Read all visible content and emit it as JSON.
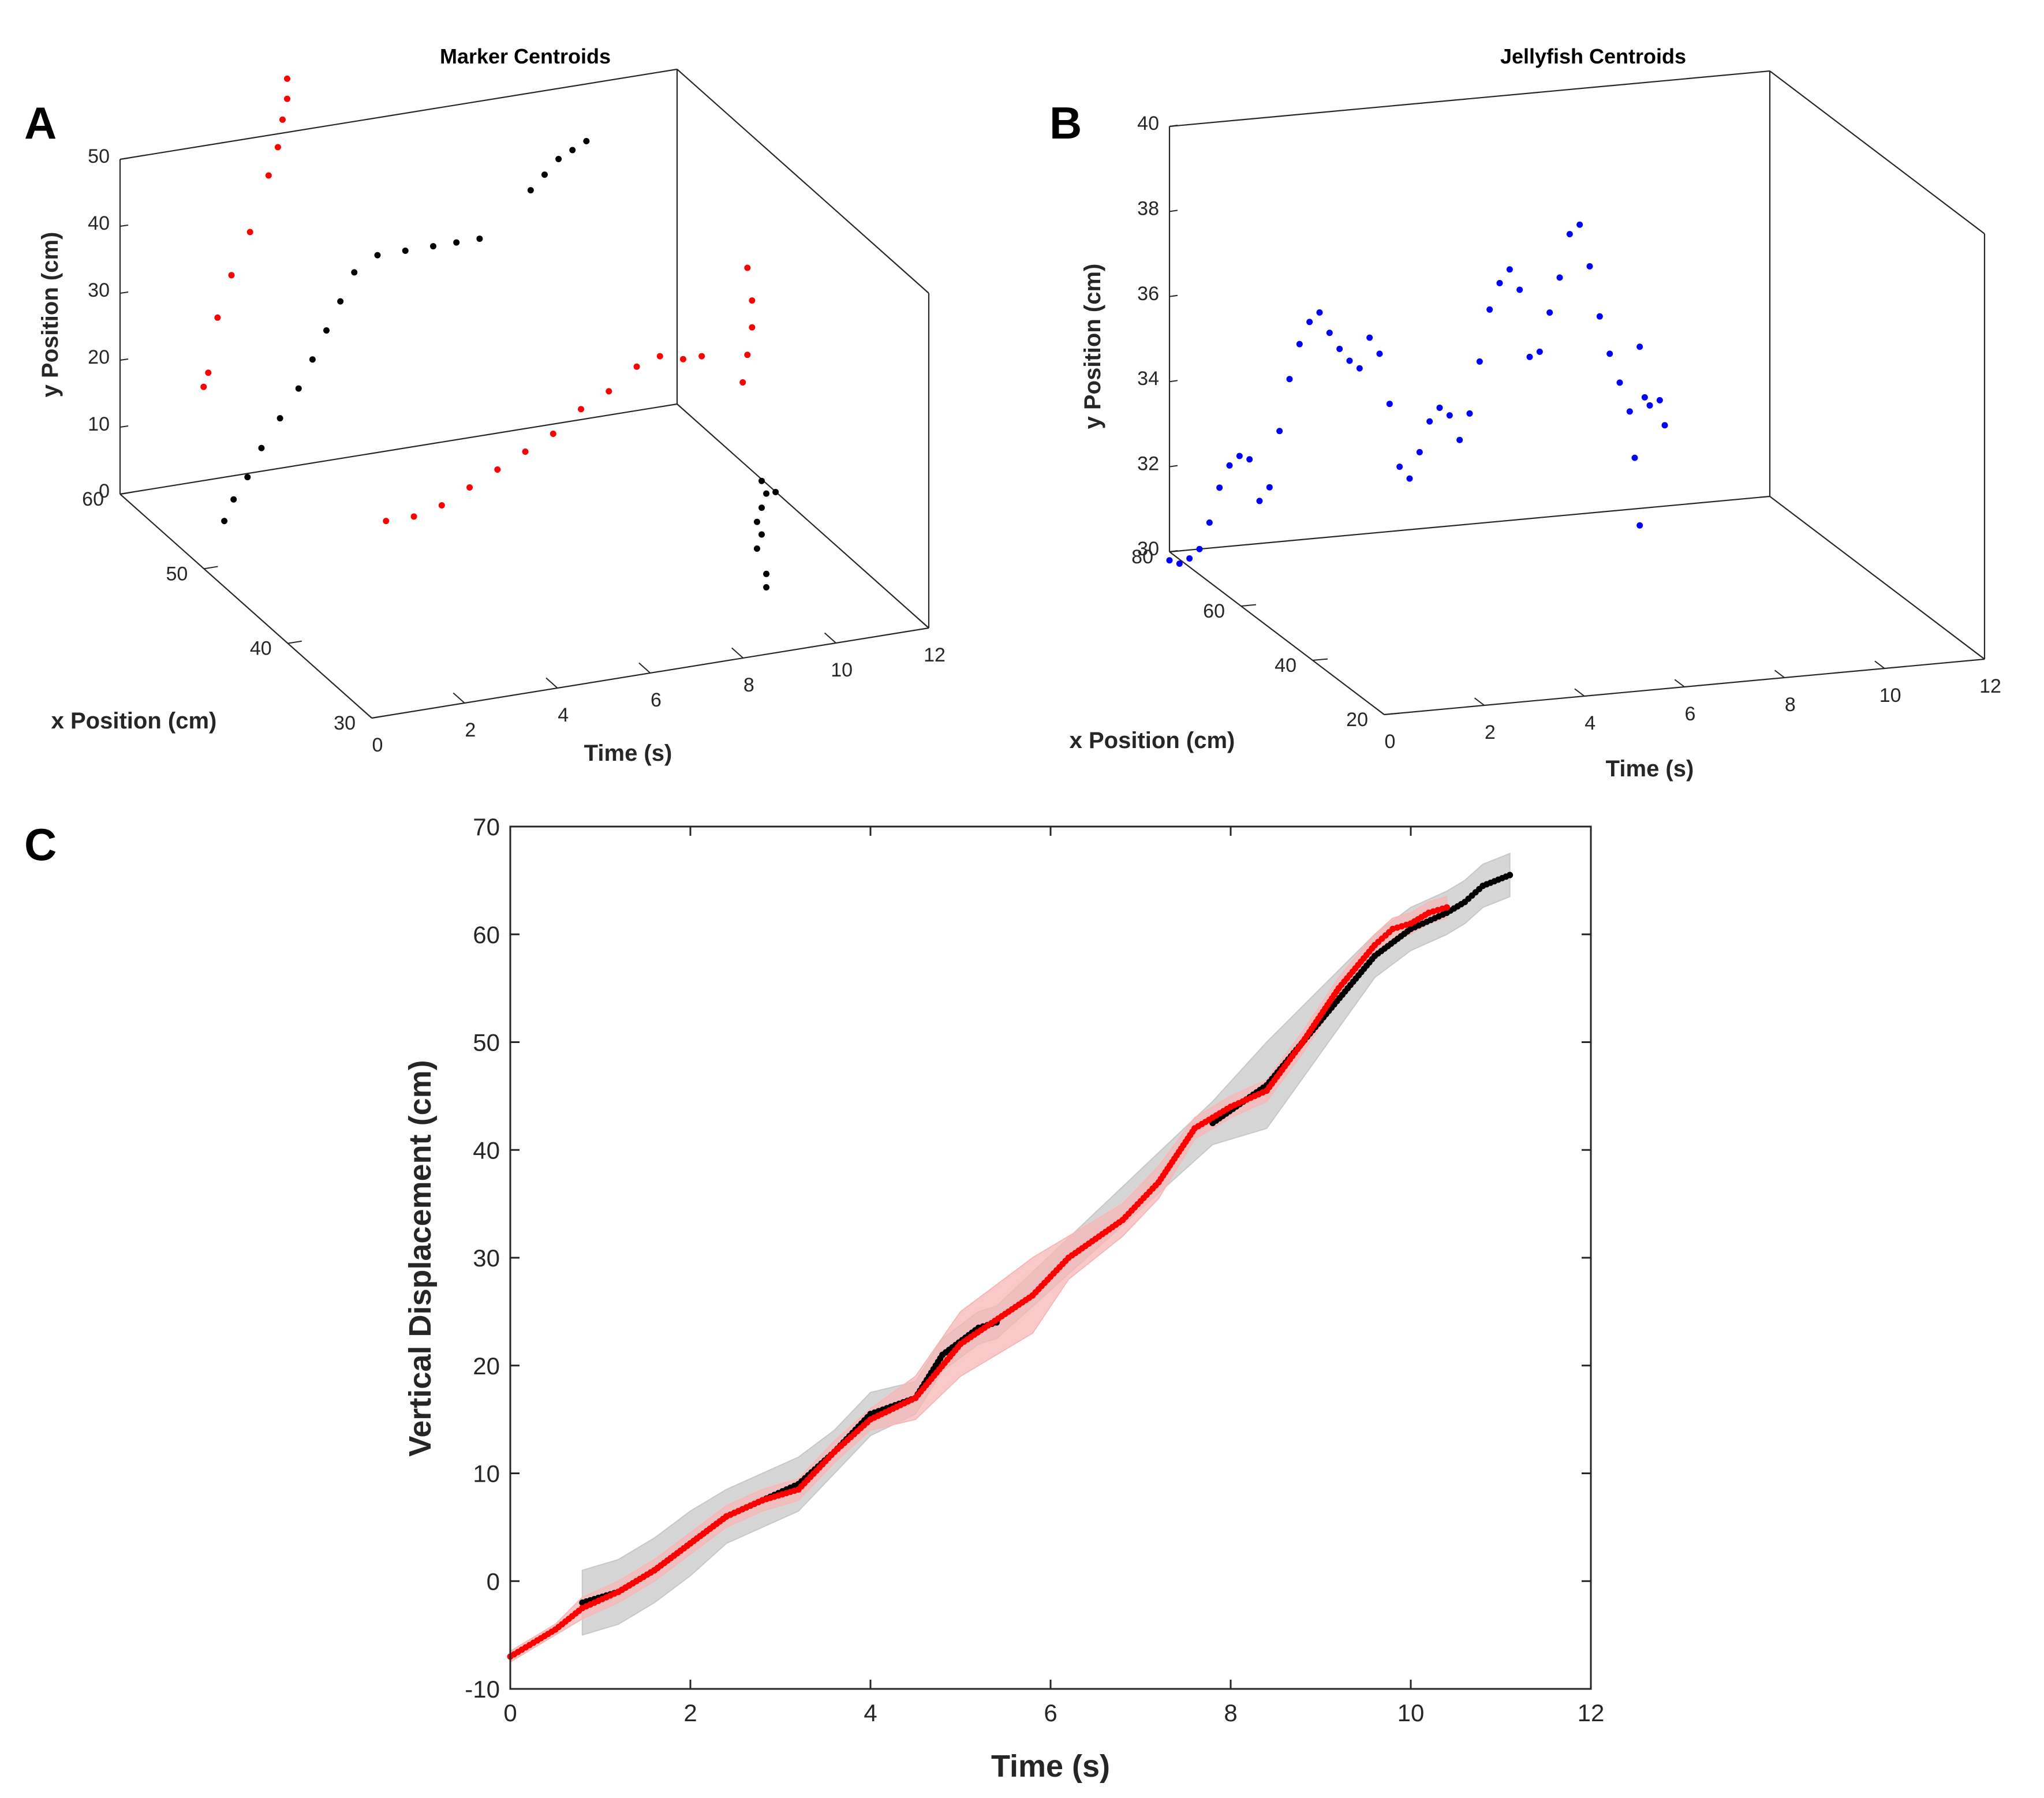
{
  "panels": {
    "A": "A",
    "B": "B",
    "C": "C"
  },
  "colors": {
    "red": "#ff0000",
    "black": "#000000",
    "blue": "#0000ff",
    "band_gray": "#c8c8c8",
    "band_pink": "#f7b7b7",
    "axis": "#262626"
  },
  "chart_data": [
    {
      "type": "scatter",
      "panel": "A",
      "title": "Marker Centroids",
      "xlabel": "Time (s)",
      "ylabel": "x Position (cm)",
      "zlabel": "y Position (cm)",
      "xlim": [
        0,
        12
      ],
      "ylim": [
        30,
        60
      ],
      "zlim": [
        0,
        50
      ],
      "x_ticks": [
        "0",
        "2",
        "4",
        "6",
        "8",
        "10",
        "12"
      ],
      "y_ticks": [
        "30",
        "40",
        "50",
        "60"
      ],
      "z_ticks": [
        "0",
        "10",
        "20",
        "30",
        "40",
        "50"
      ],
      "series": [
        {
          "color": "#ff0000",
          "points": [
            [
              1.8,
              60,
              14
            ],
            [
              1.9,
              60,
              16
            ],
            [
              2.1,
              60,
              24
            ],
            [
              2.4,
              60,
              30
            ],
            [
              2.8,
              60,
              36
            ],
            [
              3.2,
              60,
              44
            ],
            [
              3.4,
              60,
              48
            ],
            [
              3.5,
              60,
              52
            ],
            [
              3.6,
              60,
              55
            ],
            [
              3.6,
              60,
              58
            ],
            [
              3.2,
              46,
              8
            ],
            [
              3.8,
              46,
              8
            ],
            [
              4.4,
              46,
              9
            ],
            [
              5.0,
              46,
              11
            ],
            [
              5.6,
              46,
              13
            ],
            [
              6.2,
              46,
              15
            ],
            [
              6.8,
              46,
              17
            ],
            [
              7.4,
              46,
              20
            ],
            [
              8.0,
              46,
              22
            ],
            [
              8.6,
              46,
              25
            ],
            [
              9.1,
              46,
              26
            ],
            [
              9.6,
              46,
              25
            ],
            [
              10.0,
              46,
              25
            ],
            [
              9.8,
              40,
              28
            ],
            [
              9.9,
              40,
              32
            ],
            [
              10.0,
              40,
              36
            ],
            [
              10.0,
              40,
              40
            ],
            [
              9.9,
              40,
              45
            ]
          ]
        },
        {
          "color": "#000000",
          "points": [
            [
              0.8,
              52,
              4
            ],
            [
              1.0,
              52,
              7
            ],
            [
              1.3,
              52,
              10
            ],
            [
              1.6,
              52,
              14
            ],
            [
              2.0,
              52,
              18
            ],
            [
              2.4,
              52,
              22
            ],
            [
              2.7,
              52,
              26
            ],
            [
              3.0,
              52,
              30
            ],
            [
              3.3,
              52,
              34
            ],
            [
              3.6,
              52,
              38
            ],
            [
              4.1,
              52,
              40
            ],
            [
              4.7,
              52,
              40
            ],
            [
              5.3,
              52,
              40
            ],
            [
              5.8,
              52,
              40
            ],
            [
              6.3,
              52,
              40
            ],
            [
              7.4,
              52,
              46
            ],
            [
              7.7,
              52,
              48
            ],
            [
              8.0,
              52,
              50
            ],
            [
              8.3,
              52,
              51
            ],
            [
              8.6,
              52,
              52
            ],
            [
              8.3,
              30,
              16
            ],
            [
              8.4,
              30,
              18
            ],
            [
              8.3,
              30,
              20
            ],
            [
              8.4,
              30,
              22
            ],
            [
              8.5,
              30,
              24
            ],
            [
              8.4,
              30,
              26
            ],
            [
              8.7,
              30,
              24
            ],
            [
              8.5,
              30,
              12
            ],
            [
              8.5,
              30,
              10
            ]
          ]
        }
      ]
    },
    {
      "type": "scatter",
      "panel": "B",
      "title": "Jellyfish Centroids",
      "xlabel": "Time (s)",
      "ylabel": "x Position (cm)",
      "zlabel": "y Position (cm)",
      "xlim": [
        0,
        12
      ],
      "ylim": [
        20,
        80
      ],
      "zlim": [
        30,
        40
      ],
      "x_ticks": [
        "0",
        "2",
        "4",
        "6",
        "8",
        "10",
        "12"
      ],
      "y_ticks": [
        "20",
        "40",
        "60",
        "80"
      ],
      "z_ticks": [
        "30",
        "32",
        "34",
        "36",
        "38",
        "40"
      ],
      "series": [
        {
          "color": "#0000ff",
          "points": [
            [
              0.0,
              29.8
            ],
            [
              0.2,
              29.7
            ],
            [
              0.4,
              29.8
            ],
            [
              0.6,
              30.0
            ],
            [
              0.8,
              30.6
            ],
            [
              1.0,
              31.4
            ],
            [
              1.2,
              31.9
            ],
            [
              1.4,
              32.1
            ],
            [
              1.6,
              32.0
            ],
            [
              1.8,
              31.0
            ],
            [
              2.0,
              31.3
            ],
            [
              2.2,
              32.6
            ],
            [
              2.4,
              33.8
            ],
            [
              2.6,
              34.6
            ],
            [
              2.8,
              35.1
            ],
            [
              3.0,
              35.3
            ],
            [
              3.2,
              34.8
            ],
            [
              3.4,
              34.4
            ],
            [
              3.6,
              34.1
            ],
            [
              3.8,
              33.9
            ],
            [
              4.0,
              34.6
            ],
            [
              4.2,
              34.2
            ],
            [
              4.4,
              33.0
            ],
            [
              4.6,
              31.5
            ],
            [
              4.8,
              31.2
            ],
            [
              5.0,
              31.8
            ],
            [
              5.2,
              32.5
            ],
            [
              5.4,
              32.8
            ],
            [
              5.6,
              32.6
            ],
            [
              5.8,
              32.0
            ],
            [
              6.0,
              32.6
            ],
            [
              6.2,
              33.8
            ],
            [
              6.4,
              35.0
            ],
            [
              6.6,
              35.6
            ],
            [
              6.8,
              35.9
            ],
            [
              7.0,
              35.4
            ],
            [
              7.2,
              33.8
            ],
            [
              7.4,
              33.9
            ],
            [
              7.6,
              34.8
            ],
            [
              7.8,
              35.6
            ],
            [
              8.0,
              36.6
            ],
            [
              8.2,
              36.8
            ],
            [
              8.4,
              35.8
            ],
            [
              8.6,
              34.6
            ],
            [
              8.8,
              33.7
            ],
            [
              9.0,
              33.0
            ],
            [
              9.2,
              32.3
            ],
            [
              9.3,
              31.2
            ],
            [
              9.4,
              29.6
            ],
            [
              9.4,
              33.8
            ],
            [
              9.5,
              32.6
            ],
            [
              9.6,
              32.4
            ],
            [
              9.8,
              32.5
            ],
            [
              9.9,
              31.9
            ]
          ]
        }
      ]
    },
    {
      "type": "line",
      "panel": "C",
      "xlabel": "Time (s)",
      "ylabel": "Vertical Displacement (cm)",
      "xlim": [
        0,
        12
      ],
      "ylim": [
        -10,
        70
      ],
      "x_ticks": [
        "0",
        "2",
        "4",
        "6",
        "8",
        "10",
        "12"
      ],
      "y_ticks": [
        "-10",
        "0",
        "10",
        "20",
        "30",
        "40",
        "50",
        "60",
        "70"
      ],
      "series": [
        {
          "color": "#000000",
          "band_color": "#c8c8c8",
          "x": [
            0.8,
            1.2,
            1.6,
            2.0,
            2.4,
            2.8,
            3.2,
            3.6,
            4.0,
            4.5,
            4.8,
            5.2,
            5.4,
            7.8,
            8.4,
            9.0,
            9.6,
            10.0,
            10.4,
            10.6,
            10.8,
            11.1
          ],
          "y": [
            -2.0,
            -1.0,
            1.0,
            3.5,
            6.0,
            7.5,
            9.0,
            12.0,
            15.5,
            17.0,
            21.0,
            23.5,
            24.0,
            42.5,
            46.0,
            52.0,
            58.0,
            60.5,
            62.0,
            63.0,
            64.5,
            65.5
          ],
          "band": [
            3.0,
            3.0,
            3.0,
            3.0,
            2.5,
            2.5,
            2.5,
            2.0,
            2.0,
            1.5,
            1.5,
            1.5,
            1.5,
            2.0,
            4.0,
            3.0,
            2.0,
            2.0,
            2.0,
            2.0,
            2.0,
            2.0
          ]
        },
        {
          "color": "#ff0000",
          "band_color": "#f7b7b7",
          "x": [
            0.0,
            0.3,
            0.5,
            0.8,
            1.2,
            1.6,
            2.0,
            2.4,
            2.8,
            3.2,
            3.6,
            4.0,
            4.5,
            5.0,
            5.8,
            6.2,
            6.8,
            7.2,
            7.6,
            8.0,
            8.4,
            8.8,
            9.2,
            9.6,
            9.8,
            10.0,
            10.2,
            10.4
          ],
          "y": [
            -7.0,
            -5.5,
            -4.5,
            -2.5,
            -1.0,
            1.0,
            3.5,
            6.0,
            7.5,
            8.5,
            12.0,
            15.0,
            17.0,
            22.0,
            26.5,
            30.0,
            33.5,
            37.0,
            42.0,
            44.0,
            45.5,
            50.0,
            55.0,
            59.0,
            60.5,
            61.0,
            62.0,
            62.5
          ],
          "band": [
            0.5,
            0.5,
            0.5,
            1.0,
            1.0,
            1.0,
            1.0,
            1.0,
            1.0,
            1.0,
            1.0,
            1.0,
            2.0,
            3.0,
            3.5,
            2.0,
            1.5,
            1.5,
            1.0,
            1.0,
            1.0,
            1.0,
            1.0,
            1.0,
            1.0,
            1.0,
            1.0,
            1.0
          ]
        }
      ]
    }
  ]
}
